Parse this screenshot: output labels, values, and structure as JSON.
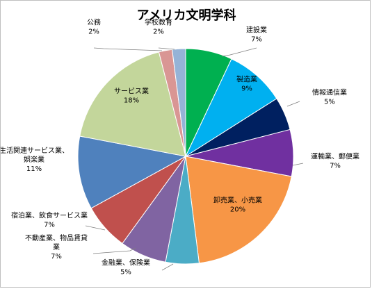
{
  "chart_data": {
    "type": "pie",
    "title": "アメリカ文明学科",
    "start": "12 o'clock",
    "direction": "clockwise",
    "slices": [
      {
        "label": [
          "建設業"
        ],
        "percent_label": "7%",
        "value": 7,
        "color": "#00B050"
      },
      {
        "label": [
          "製造業"
        ],
        "percent_label": "9%",
        "value": 9,
        "color": "#00B0F0"
      },
      {
        "label": [
          "情報通信業"
        ],
        "percent_label": "5%",
        "value": 5,
        "color": "#002060"
      },
      {
        "label": [
          "運輸業、郵便業"
        ],
        "percent_label": "7%",
        "value": 7,
        "color": "#7030A0"
      },
      {
        "label": [
          "卸売業、小売業"
        ],
        "percent_label": "20%",
        "value": 20,
        "color": "#F79646"
      },
      {
        "label": [
          "金融業、保険業"
        ],
        "percent_label": "5%",
        "value": 5,
        "color": "#4BACC6"
      },
      {
        "label": [
          "不動産業、物品賃貸",
          "業"
        ],
        "percent_label": "7%",
        "value": 7,
        "color": "#8064A2"
      },
      {
        "label": [
          "宿泊業、飲食サービス業"
        ],
        "percent_label": "7%",
        "value": 7,
        "color": "#C0504D"
      },
      {
        "label": [
          "生活関連サービス業、",
          "娯楽業"
        ],
        "percent_label": "11%",
        "value": 11,
        "color": "#4F81BD"
      },
      {
        "label": [
          "サービス業"
        ],
        "percent_label": "18%",
        "value": 18,
        "color": "#C3D69B"
      },
      {
        "label": [
          "公務"
        ],
        "percent_label": "2%",
        "value": 2,
        "color": "#D99694"
      },
      {
        "label": [
          "学校教育"
        ],
        "percent_label": "2%",
        "value": 2,
        "color": "#95B3D7"
      }
    ]
  }
}
